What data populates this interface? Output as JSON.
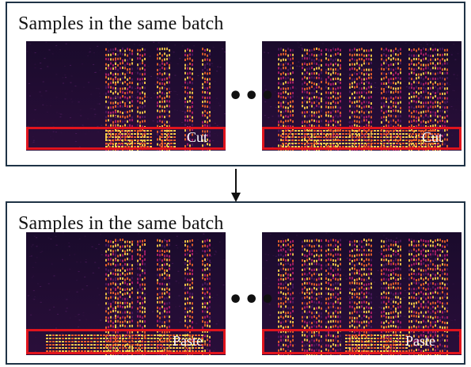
{
  "top_panel": {
    "title": "Samples in the same batch",
    "left_label": "Cut",
    "right_label": "Cut"
  },
  "bottom_panel": {
    "title": "Samples in the same batch",
    "left_label": "Paste",
    "right_label": "Paste"
  },
  "ellipsis": "•••",
  "colors": {
    "border": "#1f3346",
    "highlight": "#e0141d",
    "spectrogram_low": "#12061f",
    "spectrogram_mid": "#a01a6a",
    "spectrogram_high": "#ffd24a"
  }
}
